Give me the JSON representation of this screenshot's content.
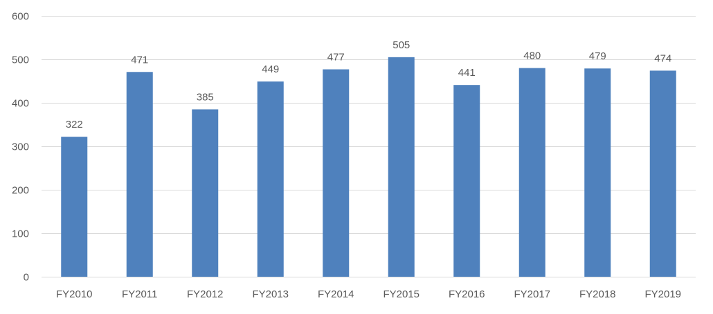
{
  "chart_data": {
    "type": "bar",
    "title": "",
    "xlabel": "",
    "ylabel": "",
    "categories": [
      "FY2010",
      "FY2011",
      "FY2012",
      "FY2013",
      "FY2014",
      "FY2015",
      "FY2016",
      "FY2017",
      "FY2018",
      "FY2019"
    ],
    "values": [
      322,
      471,
      385,
      449,
      477,
      505,
      441,
      480,
      479,
      474
    ],
    "ylim": [
      0,
      600
    ],
    "yticks": [
      0,
      100,
      200,
      300,
      400,
      500,
      600
    ],
    "grid": true,
    "data_labels": true,
    "legend": "none",
    "colors": {
      "bar": "#4f81bd",
      "grid": "#d9d9d9",
      "text": "#595959"
    }
  }
}
